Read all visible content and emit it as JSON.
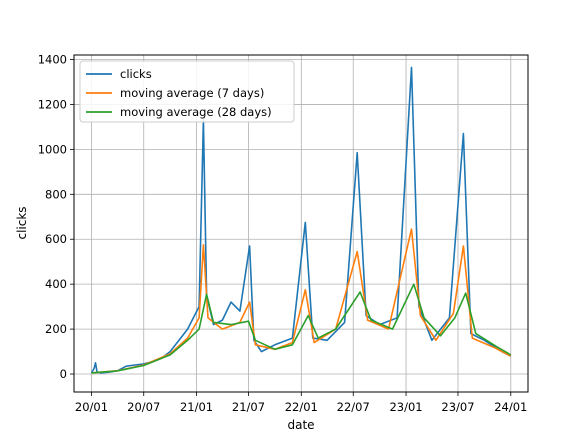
{
  "chart_data": {
    "type": "line",
    "title": "",
    "xlabel": "date",
    "ylabel": "clicks",
    "x_ticks": [
      "20/01",
      "20/07",
      "21/01",
      "21/07",
      "22/01",
      "22/07",
      "23/01",
      "23/07",
      "24/01"
    ],
    "x_tick_dates": [
      "2020-01-01",
      "2020-07-01",
      "2021-01-01",
      "2021-07-01",
      "2022-01-01",
      "2022-07-01",
      "2023-01-01",
      "2023-07-01",
      "2024-01-01"
    ],
    "xlim": [
      "2019-11-01",
      "2024-03-01"
    ],
    "y_ticks": [
      0,
      200,
      400,
      600,
      800,
      1000,
      1200,
      1400
    ],
    "ylim": [
      -80,
      1420
    ],
    "grid": true,
    "legend_position": "top-left",
    "series": [
      {
        "name": "clicks",
        "color": "#1f77b4",
        "points": [
          [
            "2020-01-01",
            5
          ],
          [
            "2020-01-10",
            25
          ],
          [
            "2020-01-15",
            50
          ],
          [
            "2020-01-20",
            10
          ],
          [
            "2020-02-01",
            5
          ],
          [
            "2020-03-01",
            8
          ],
          [
            "2020-04-01",
            15
          ],
          [
            "2020-05-01",
            35
          ],
          [
            "2020-06-01",
            40
          ],
          [
            "2020-07-01",
            45
          ],
          [
            "2020-08-01",
            55
          ],
          [
            "2020-09-01",
            70
          ],
          [
            "2020-10-01",
            100
          ],
          [
            "2020-11-01",
            150
          ],
          [
            "2020-12-01",
            200
          ],
          [
            "2021-01-10",
            300
          ],
          [
            "2021-01-25",
            1130
          ],
          [
            "2021-02-05",
            350
          ],
          [
            "2021-03-01",
            220
          ],
          [
            "2021-04-01",
            240
          ],
          [
            "2021-05-01",
            320
          ],
          [
            "2021-06-01",
            280
          ],
          [
            "2021-07-05",
            570
          ],
          [
            "2021-07-20",
            150
          ],
          [
            "2021-08-15",
            100
          ],
          [
            "2021-10-01",
            130
          ],
          [
            "2021-12-01",
            160
          ],
          [
            "2022-01-15",
            675
          ],
          [
            "2022-02-10",
            160
          ],
          [
            "2022-04-01",
            150
          ],
          [
            "2022-06-01",
            230
          ],
          [
            "2022-07-15",
            985
          ],
          [
            "2022-08-15",
            260
          ],
          [
            "2022-10-01",
            220
          ],
          [
            "2022-12-01",
            250
          ],
          [
            "2023-01-20",
            1365
          ],
          [
            "2023-02-15",
            300
          ],
          [
            "2023-04-01",
            150
          ],
          [
            "2023-06-01",
            250
          ],
          [
            "2023-07-20",
            1070
          ],
          [
            "2023-08-15",
            180
          ],
          [
            "2023-10-01",
            150
          ],
          [
            "2023-12-01",
            100
          ],
          [
            "2024-01-01",
            80
          ]
        ]
      },
      {
        "name": "moving average (7 days)",
        "color": "#ff7f0e",
        "points": [
          [
            "2020-01-01",
            5
          ],
          [
            "2020-02-01",
            8
          ],
          [
            "2020-04-01",
            15
          ],
          [
            "2020-07-01",
            40
          ],
          [
            "2020-10-01",
            90
          ],
          [
            "2020-12-01",
            160
          ],
          [
            "2021-01-10",
            250
          ],
          [
            "2021-01-25",
            575
          ],
          [
            "2021-02-10",
            250
          ],
          [
            "2021-04-01",
            200
          ],
          [
            "2021-06-01",
            230
          ],
          [
            "2021-07-05",
            320
          ],
          [
            "2021-07-25",
            130
          ],
          [
            "2021-10-01",
            110
          ],
          [
            "2021-12-01",
            140
          ],
          [
            "2022-01-15",
            375
          ],
          [
            "2022-02-15",
            140
          ],
          [
            "2022-05-01",
            200
          ],
          [
            "2022-07-15",
            545
          ],
          [
            "2022-08-20",
            240
          ],
          [
            "2022-11-01",
            200
          ],
          [
            "2023-01-20",
            645
          ],
          [
            "2023-02-20",
            260
          ],
          [
            "2023-04-15",
            150
          ],
          [
            "2023-06-15",
            270
          ],
          [
            "2023-07-20",
            570
          ],
          [
            "2023-08-20",
            160
          ],
          [
            "2023-11-01",
            120
          ],
          [
            "2024-01-01",
            80
          ]
        ]
      },
      {
        "name": "moving average (28 days)",
        "color": "#2ca02c",
        "points": [
          [
            "2020-01-01",
            5
          ],
          [
            "2020-02-01",
            8
          ],
          [
            "2020-04-01",
            14
          ],
          [
            "2020-07-01",
            38
          ],
          [
            "2020-10-01",
            85
          ],
          [
            "2020-12-01",
            150
          ],
          [
            "2021-01-10",
            200
          ],
          [
            "2021-02-05",
            355
          ],
          [
            "2021-03-01",
            230
          ],
          [
            "2021-05-01",
            220
          ],
          [
            "2021-07-01",
            235
          ],
          [
            "2021-07-25",
            150
          ],
          [
            "2021-10-01",
            110
          ],
          [
            "2021-12-01",
            130
          ],
          [
            "2022-01-25",
            260
          ],
          [
            "2022-03-01",
            160
          ],
          [
            "2022-05-01",
            200
          ],
          [
            "2022-07-25",
            365
          ],
          [
            "2022-09-01",
            240
          ],
          [
            "2022-11-15",
            200
          ],
          [
            "2023-01-28",
            400
          ],
          [
            "2023-03-05",
            250
          ],
          [
            "2023-05-01",
            170
          ],
          [
            "2023-06-20",
            250
          ],
          [
            "2023-07-28",
            360
          ],
          [
            "2023-09-01",
            180
          ],
          [
            "2023-11-15",
            120
          ],
          [
            "2024-01-01",
            85
          ]
        ]
      }
    ]
  }
}
